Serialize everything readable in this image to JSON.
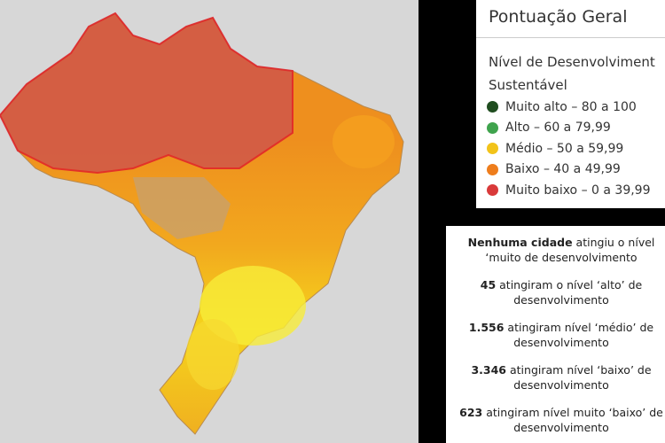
{
  "legend": {
    "title": "Pontuação Geral",
    "subtitle": [
      "Nível de Desenvolviment",
      "Sustentável"
    ],
    "items": [
      {
        "label": "Muito alto – 80 a 100",
        "color": "#1f4d1f"
      },
      {
        "label": "Alto – 60 a 79,99",
        "color": "#3fa34d"
      },
      {
        "label": "Médio – 50 a 59,99",
        "color": "#f2c31a"
      },
      {
        "label": "Baixo – 40 a 49,99",
        "color": "#ee7d1c"
      },
      {
        "label": "Muito baixo – 0 a 39,99",
        "color": "#d93a3a"
      }
    ]
  },
  "notes": [
    {
      "strong": "Nenhuma cidade",
      "rest": "atingiu o nível ‘muito de desenvolvimento"
    },
    {
      "strong": "45",
      "rest": "atingiram o nível ‘alto’ de desenvolvimento"
    },
    {
      "strong": "1.556",
      "rest": "atingiram nível ‘médio’ de desenvolvimento"
    },
    {
      "strong": "3.346",
      "rest": "atingiram nível ‘baixo’ de desenvolvimento"
    },
    {
      "strong": "623",
      "rest": "atingiram nível muito ‘baixo’ de desenvolvimento"
    }
  ]
}
